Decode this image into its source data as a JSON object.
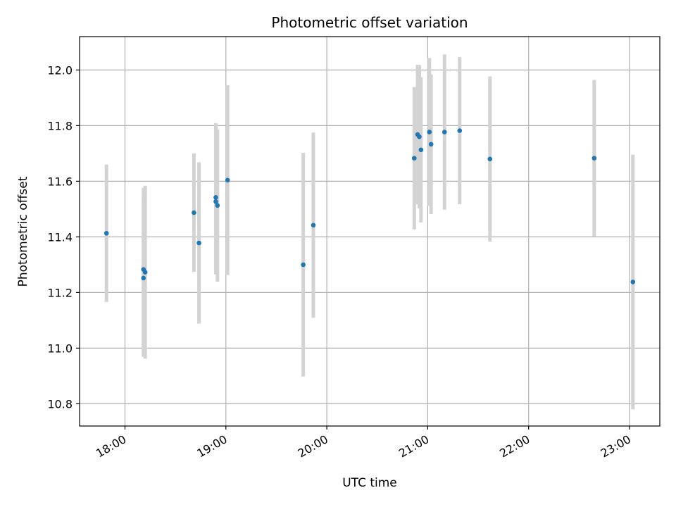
{
  "chart_data": {
    "type": "scatter",
    "title": "Photometric offset variation",
    "xlabel": "UTC time",
    "ylabel": "Photometric offset",
    "x_ticks": [
      "18:00",
      "19:00",
      "20:00",
      "21:00",
      "22:00",
      "23:00"
    ],
    "y_ticks": [
      "10.8",
      "11.0",
      "11.2",
      "11.4",
      "11.6",
      "11.8",
      "12.0"
    ],
    "xlim": [
      "17:33",
      "23:18"
    ],
    "ylim": [
      10.72,
      12.12
    ],
    "grid": true,
    "colors": {
      "point": "#1f77b4",
      "errorbar": "#d3d3d3",
      "grid": "#b0b0b0"
    },
    "points": [
      {
        "x": "17:49",
        "y": 11.413,
        "err": 0.247
      },
      {
        "x": "18:11",
        "y": 11.283,
        "err": 0.293
      },
      {
        "x": "18:11",
        "y": 11.252,
        "err": 0.283
      },
      {
        "x": "18:12",
        "y": 11.273,
        "err": 0.311
      },
      {
        "x": "18:41",
        "y": 11.487,
        "err": 0.213
      },
      {
        "x": "18:44",
        "y": 11.378,
        "err": 0.29
      },
      {
        "x": "18:54",
        "y": 11.542,
        "err": 0.267
      },
      {
        "x": "18:54",
        "y": 11.527,
        "err": 0.262
      },
      {
        "x": "18:55",
        "y": 11.513,
        "err": 0.274
      },
      {
        "x": "19:01",
        "y": 11.604,
        "err": 0.341
      },
      {
        "x": "19:46",
        "y": 11.3,
        "err": 0.402
      },
      {
        "x": "19:52",
        "y": 11.442,
        "err": 0.333
      },
      {
        "x": "20:52",
        "y": 11.683,
        "err": 0.256
      },
      {
        "x": "20:54",
        "y": 11.768,
        "err": 0.251
      },
      {
        "x": "20:55",
        "y": 11.76,
        "err": 0.258
      },
      {
        "x": "20:56",
        "y": 11.713,
        "err": 0.261
      },
      {
        "x": "21:01",
        "y": 11.777,
        "err": 0.266
      },
      {
        "x": "21:02",
        "y": 11.733,
        "err": 0.251
      },
      {
        "x": "21:10",
        "y": 11.777,
        "err": 0.279
      },
      {
        "x": "21:19",
        "y": 11.782,
        "err": 0.265
      },
      {
        "x": "21:37",
        "y": 11.68,
        "err": 0.297
      },
      {
        "x": "22:39",
        "y": 11.683,
        "err": 0.281
      },
      {
        "x": "23:02",
        "y": 11.238,
        "err": 0.458
      }
    ]
  }
}
